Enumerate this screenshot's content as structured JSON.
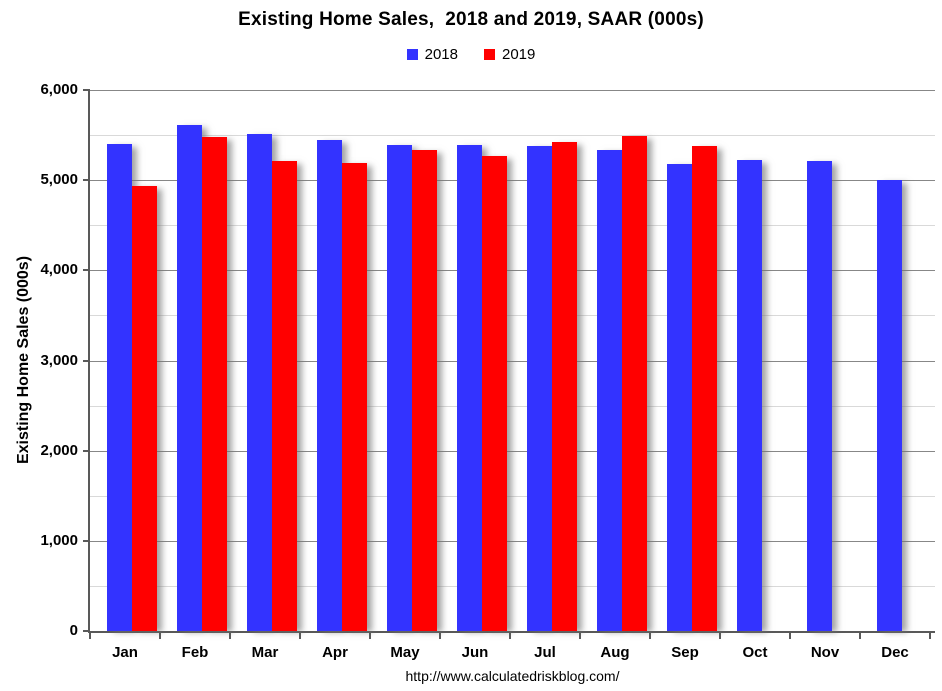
{
  "colors": {
    "background": "#ffffff",
    "axis": "#595959",
    "major_grid": "#878787",
    "minor_grid": "#d9d9d9",
    "text": "#000000",
    "series_2018": "#3333ff",
    "series_2019": "#ff0000"
  },
  "chart_data": {
    "type": "bar",
    "title": "Existing Home Sales,  2018 and 2019, SAAR (000s)",
    "ylabel": "Existing Home Sales (000s)",
    "xlabel": "",
    "ylim": [
      0,
      6000
    ],
    "y_major_step": 1000,
    "y_minor_step": 500,
    "y_tick_labels": [
      "0",
      "1,000",
      "2,000",
      "3,000",
      "4,000",
      "5,000",
      "6,000"
    ],
    "grid": true,
    "legend_position": "top-center",
    "categories": [
      "Jan",
      "Feb",
      "Mar",
      "Apr",
      "May",
      "Jun",
      "Jul",
      "Aug",
      "Sep",
      "Oct",
      "Nov",
      "Dec"
    ],
    "series": [
      {
        "name": "2018",
        "color": "#3333ff",
        "values": [
          5400,
          5610,
          5510,
          5450,
          5390,
          5390,
          5380,
          5340,
          5180,
          5220,
          5210,
          5000
        ]
      },
      {
        "name": "2019",
        "color": "#ff0000",
        "values": [
          4930,
          5480,
          5210,
          5190,
          5340,
          5270,
          5420,
          5490,
          5380,
          null,
          null,
          null
        ]
      }
    ],
    "annotation": "http://www.calculatedriskblog.com/"
  }
}
